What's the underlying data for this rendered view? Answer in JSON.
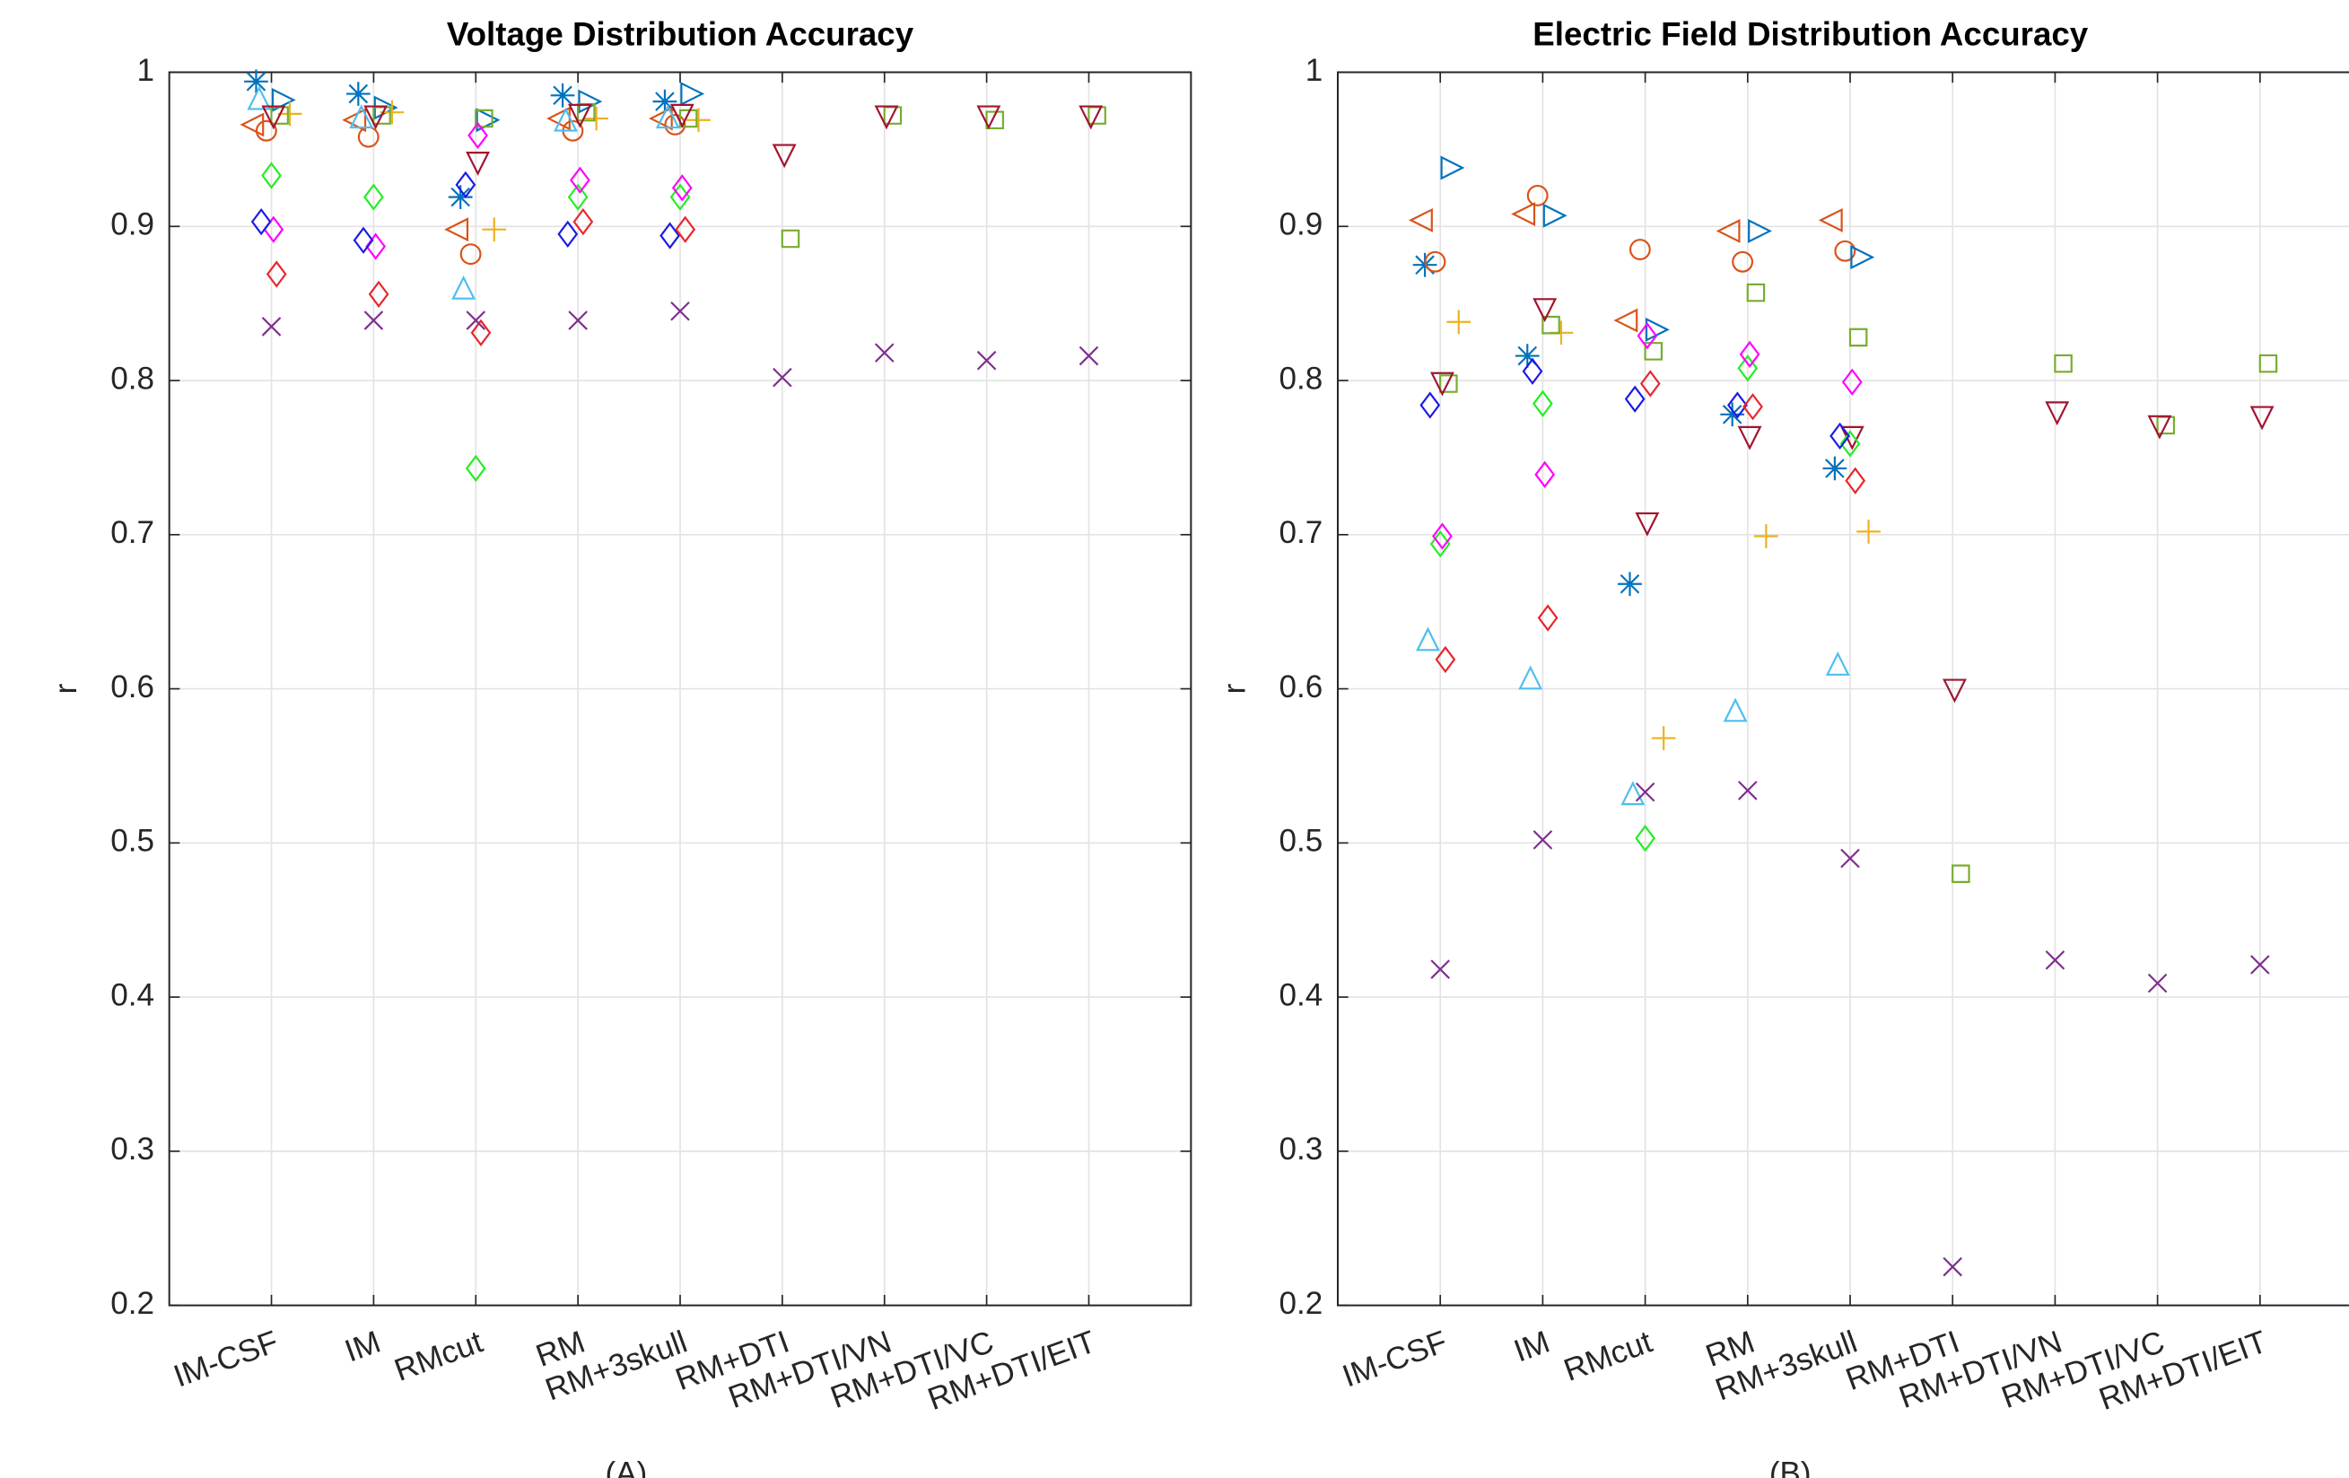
{
  "chart_data": [
    {
      "type": "scatter",
      "title": "Voltage Distribution Accuracy",
      "y_label": "r",
      "caption": "(A)",
      "categories": [
        "IM-CSF",
        "IM",
        "RMcut",
        "RM",
        "RM+3skull",
        "RM+DTI",
        "RM+DTI/VN",
        "RM+DTI/VC",
        "RM+DTI/EIT"
      ],
      "ylim": [
        0.2,
        1
      ],
      "yticks": [
        0.2,
        0.3,
        0.4,
        0.5,
        0.6,
        0.7,
        0.8,
        0.9,
        1
      ],
      "grid": true,
      "series": [
        {
          "marker": "star",
          "color": "#0072BD",
          "values": [
            0.994,
            0.986,
            0.919,
            0.985,
            0.981,
            null,
            null,
            null,
            null
          ]
        },
        {
          "marker": "triangle-left",
          "color": "#D95319",
          "values": [
            0.966,
            0.969,
            0.898,
            0.97,
            0.97,
            null,
            null,
            null,
            null
          ]
        },
        {
          "marker": "circle",
          "color": "#D95319",
          "values": [
            0.962,
            0.958,
            0.882,
            0.962,
            0.966,
            null,
            null,
            null,
            null
          ]
        },
        {
          "marker": "triangle-right",
          "color": "#0072BD",
          "values": [
            0.982,
            0.977,
            0.969,
            0.981,
            0.986,
            null,
            null,
            null,
            null
          ]
        },
        {
          "marker": "triangle-up",
          "color": "#4DBEEE",
          "values": [
            0.982,
            0.97,
            0.859,
            0.968,
            0.97,
            null,
            null,
            null,
            null
          ]
        },
        {
          "marker": "plus",
          "color": "#EDB120",
          "values": [
            0.973,
            0.974,
            0.898,
            0.97,
            0.969,
            null,
            null,
            null,
            null
          ]
        },
        {
          "marker": "square",
          "color": "#77AC30",
          "values": [
            0.972,
            0.972,
            0.97,
            0.974,
            0.97,
            0.892,
            0.972,
            0.969,
            0.972
          ]
        },
        {
          "marker": "triangle-down",
          "color": "#A2142F",
          "values": [
            0.972,
            0.972,
            0.942,
            0.973,
            0.973,
            0.947,
            0.972,
            0.972,
            0.972
          ]
        },
        {
          "marker": "diamond",
          "color": "#22EE22",
          "values": [
            0.933,
            0.919,
            0.743,
            0.919,
            0.919,
            null,
            null,
            null,
            null
          ]
        },
        {
          "marker": "diamond",
          "color": "#FF00FF",
          "values": [
            0.898,
            0.887,
            0.959,
            0.93,
            0.925,
            null,
            null,
            null,
            null
          ]
        },
        {
          "marker": "diamond",
          "color": "#1A1AE6",
          "values": [
            0.903,
            0.891,
            0.927,
            0.895,
            0.894,
            null,
            null,
            null,
            null
          ]
        },
        {
          "marker": "diamond",
          "color": "#E8262B",
          "values": [
            0.869,
            0.856,
            0.831,
            0.903,
            0.898,
            null,
            null,
            null,
            null
          ]
        },
        {
          "marker": "x",
          "color": "#7E2F8E",
          "values": [
            0.835,
            0.839,
            0.839,
            0.839,
            0.845,
            0.802,
            0.818,
            0.813,
            0.816
          ]
        }
      ]
    },
    {
      "type": "scatter",
      "title": "Electric Field Distribution Accuracy",
      "y_label": "r",
      "caption": "(B)",
      "categories": [
        "IM-CSF",
        "IM",
        "RMcut",
        "RM",
        "RM+3skull",
        "RM+DTI",
        "RM+DTI/VN",
        "RM+DTI/VC",
        "RM+DTI/EIT"
      ],
      "ylim": [
        0.2,
        1
      ],
      "yticks": [
        0.2,
        0.3,
        0.4,
        0.5,
        0.6,
        0.7,
        0.8,
        0.9,
        1
      ],
      "grid": true,
      "series": [
        {
          "marker": "star",
          "color": "#0072BD",
          "values": [
            0.875,
            0.816,
            0.668,
            0.778,
            0.743,
            null,
            null,
            null,
            null
          ]
        },
        {
          "marker": "triangle-left",
          "color": "#D95319",
          "values": [
            0.904,
            0.908,
            0.839,
            0.897,
            0.904,
            null,
            null,
            null,
            null
          ]
        },
        {
          "marker": "circle",
          "color": "#D95319",
          "values": [
            0.877,
            0.92,
            0.885,
            0.877,
            0.884,
            null,
            null,
            null,
            null
          ]
        },
        {
          "marker": "triangle-right",
          "color": "#0072BD",
          "values": [
            0.938,
            0.907,
            0.833,
            0.897,
            0.88,
            null,
            null,
            null,
            null
          ]
        },
        {
          "marker": "triangle-up",
          "color": "#4DBEEE",
          "values": [
            0.631,
            0.606,
            0.531,
            0.585,
            0.615,
            null,
            null,
            null,
            null
          ]
        },
        {
          "marker": "plus",
          "color": "#EDB120",
          "values": [
            0.838,
            0.831,
            0.568,
            0.699,
            0.702,
            null,
            null,
            null,
            null
          ]
        },
        {
          "marker": "square",
          "color": "#77AC30",
          "values": [
            0.798,
            0.836,
            0.819,
            0.857,
            0.828,
            0.48,
            0.811,
            0.771,
            0.811
          ]
        },
        {
          "marker": "triangle-down",
          "color": "#A2142F",
          "values": [
            0.799,
            0.847,
            0.708,
            0.764,
            0.764,
            0.6,
            0.78,
            0.771,
            0.777
          ]
        },
        {
          "marker": "diamond",
          "color": "#22EE22",
          "values": [
            0.694,
            0.785,
            0.503,
            0.808,
            0.759,
            null,
            null,
            null,
            null
          ]
        },
        {
          "marker": "diamond",
          "color": "#FF00FF",
          "values": [
            0.699,
            0.739,
            0.829,
            0.817,
            0.799,
            null,
            null,
            null,
            null
          ]
        },
        {
          "marker": "diamond",
          "color": "#1A1AE6",
          "values": [
            0.784,
            0.806,
            0.788,
            0.784,
            0.764,
            null,
            null,
            null,
            null
          ]
        },
        {
          "marker": "diamond",
          "color": "#E8262B",
          "values": [
            0.619,
            0.646,
            0.798,
            0.783,
            0.735,
            null,
            null,
            null,
            null
          ]
        },
        {
          "marker": "x",
          "color": "#7E2F8E",
          "values": [
            0.418,
            0.502,
            0.533,
            0.534,
            0.49,
            0.225,
            0.424,
            0.409,
            0.421
          ]
        }
      ]
    }
  ]
}
